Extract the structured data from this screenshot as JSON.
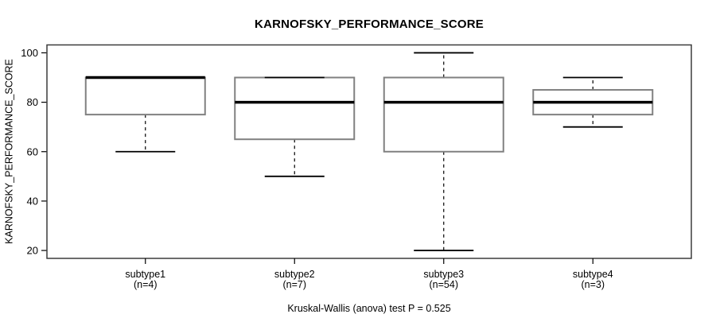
{
  "title": "KARNOFSKY_PERFORMANCE_SCORE",
  "y_axis_label": "KARNOFSKY_PERFORMANCE_SCORE",
  "footnote": "Kruskal-Wallis (anova) test P = 0.525",
  "colors": {
    "background": "#ffffff",
    "frame": "#3c3c3c",
    "box_border": "#808080",
    "box_fill": "#ffffff",
    "median": "#000000",
    "whisker": "#000000",
    "cap": "#000000",
    "tick": "#000000",
    "text": "#000000"
  },
  "chart_data": {
    "type": "boxplot",
    "title": "KARNOFSKY_PERFORMANCE_SCORE",
    "xlabel": "",
    "ylabel": "KARNOFSKY_PERFORMANCE_SCORE",
    "footnote": "Kruskal-Wallis (anova) test P = 0.525",
    "grid": false,
    "legend": "none",
    "yticks": [
      20,
      40,
      60,
      80,
      100
    ],
    "ylim": [
      16.8,
      103.2
    ],
    "categories": [
      "subtype1",
      "subtype2",
      "subtype3",
      "subtype4"
    ],
    "count_labels": [
      "(n=4)",
      "(n=7)",
      "(n=54)",
      "(n=3)"
    ],
    "series": [
      {
        "name": "subtype1",
        "n": 4,
        "min": 60,
        "q1": 75,
        "median": 90,
        "q3": 90,
        "max": 90
      },
      {
        "name": "subtype2",
        "n": 7,
        "min": 50,
        "q1": 65,
        "median": 80,
        "q3": 90,
        "max": 90
      },
      {
        "name": "subtype3",
        "n": 54,
        "min": 20,
        "q1": 60,
        "median": 80,
        "q3": 90,
        "max": 100
      },
      {
        "name": "subtype4",
        "n": 3,
        "min": 70,
        "q1": 75,
        "median": 80,
        "q3": 85,
        "max": 90
      }
    ]
  }
}
